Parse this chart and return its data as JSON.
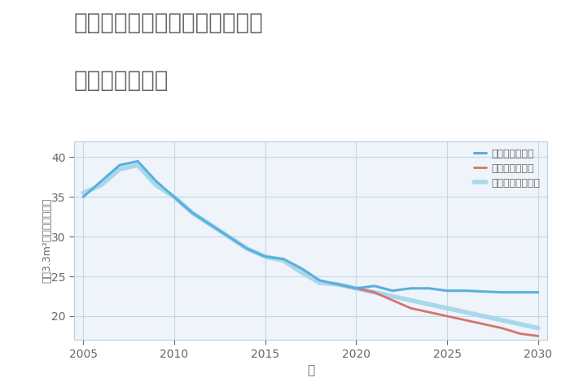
{
  "title_line1": "兵庫県たつの市揖保川町二塚の",
  "title_line2": "土地の価格推移",
  "xlabel": "年",
  "ylabel": "坪（3.3m²）単価（万円）",
  "background_color": "#ffffff",
  "plot_bg_color": "#eef4f9",
  "grid_color": "#c5d8e8",
  "title_color": "#666666",
  "axis_color": "#666666",
  "good_scenario": {
    "label": "グッドシナリオ",
    "color": "#5baee0",
    "linewidth": 2.2,
    "years": [
      2005,
      2006,
      2007,
      2008,
      2009,
      2010,
      2011,
      2012,
      2013,
      2014,
      2015,
      2016,
      2017,
      2018,
      2019,
      2020,
      2021,
      2022,
      2023,
      2024,
      2025,
      2026,
      2027,
      2028,
      2029,
      2030
    ],
    "values": [
      35.0,
      37.0,
      39.0,
      39.5,
      37.0,
      35.0,
      33.0,
      31.5,
      30.0,
      28.5,
      27.5,
      27.2,
      26.0,
      24.5,
      24.0,
      23.5,
      23.8,
      23.2,
      23.5,
      23.5,
      23.2,
      23.2,
      23.1,
      23.0,
      23.0,
      23.0
    ]
  },
  "bad_scenario": {
    "label": "バッドシナリオ",
    "color": "#d97070",
    "linewidth": 2.0,
    "years": [
      2019,
      2020,
      2021,
      2022,
      2023,
      2024,
      2025,
      2026,
      2027,
      2028,
      2029,
      2030
    ],
    "values": [
      24.0,
      23.5,
      23.0,
      22.0,
      21.0,
      20.5,
      20.0,
      19.5,
      19.0,
      18.5,
      17.8,
      17.5
    ]
  },
  "normal_scenario": {
    "label": "ノーマルシナリオ",
    "color": "#a8d8ea",
    "linewidth": 4.0,
    "years": [
      2005,
      2006,
      2007,
      2008,
      2009,
      2010,
      2011,
      2012,
      2013,
      2014,
      2015,
      2016,
      2017,
      2018,
      2019,
      2020,
      2021,
      2022,
      2023,
      2024,
      2025,
      2026,
      2027,
      2028,
      2029,
      2030
    ],
    "values": [
      35.5,
      36.5,
      38.5,
      39.0,
      36.5,
      35.0,
      33.0,
      31.5,
      30.0,
      28.5,
      27.5,
      27.0,
      25.5,
      24.2,
      24.0,
      23.5,
      23.0,
      22.5,
      22.0,
      21.5,
      21.0,
      20.5,
      20.0,
      19.5,
      19.0,
      18.5
    ]
  },
  "xlim": [
    2004.5,
    2030.5
  ],
  "ylim": [
    17,
    42
  ],
  "yticks": [
    20,
    25,
    30,
    35,
    40
  ],
  "xticks": [
    2005,
    2010,
    2015,
    2020,
    2025,
    2030
  ],
  "legend_fontsize": 9,
  "title_fontsize": 20,
  "tick_fontsize": 10
}
